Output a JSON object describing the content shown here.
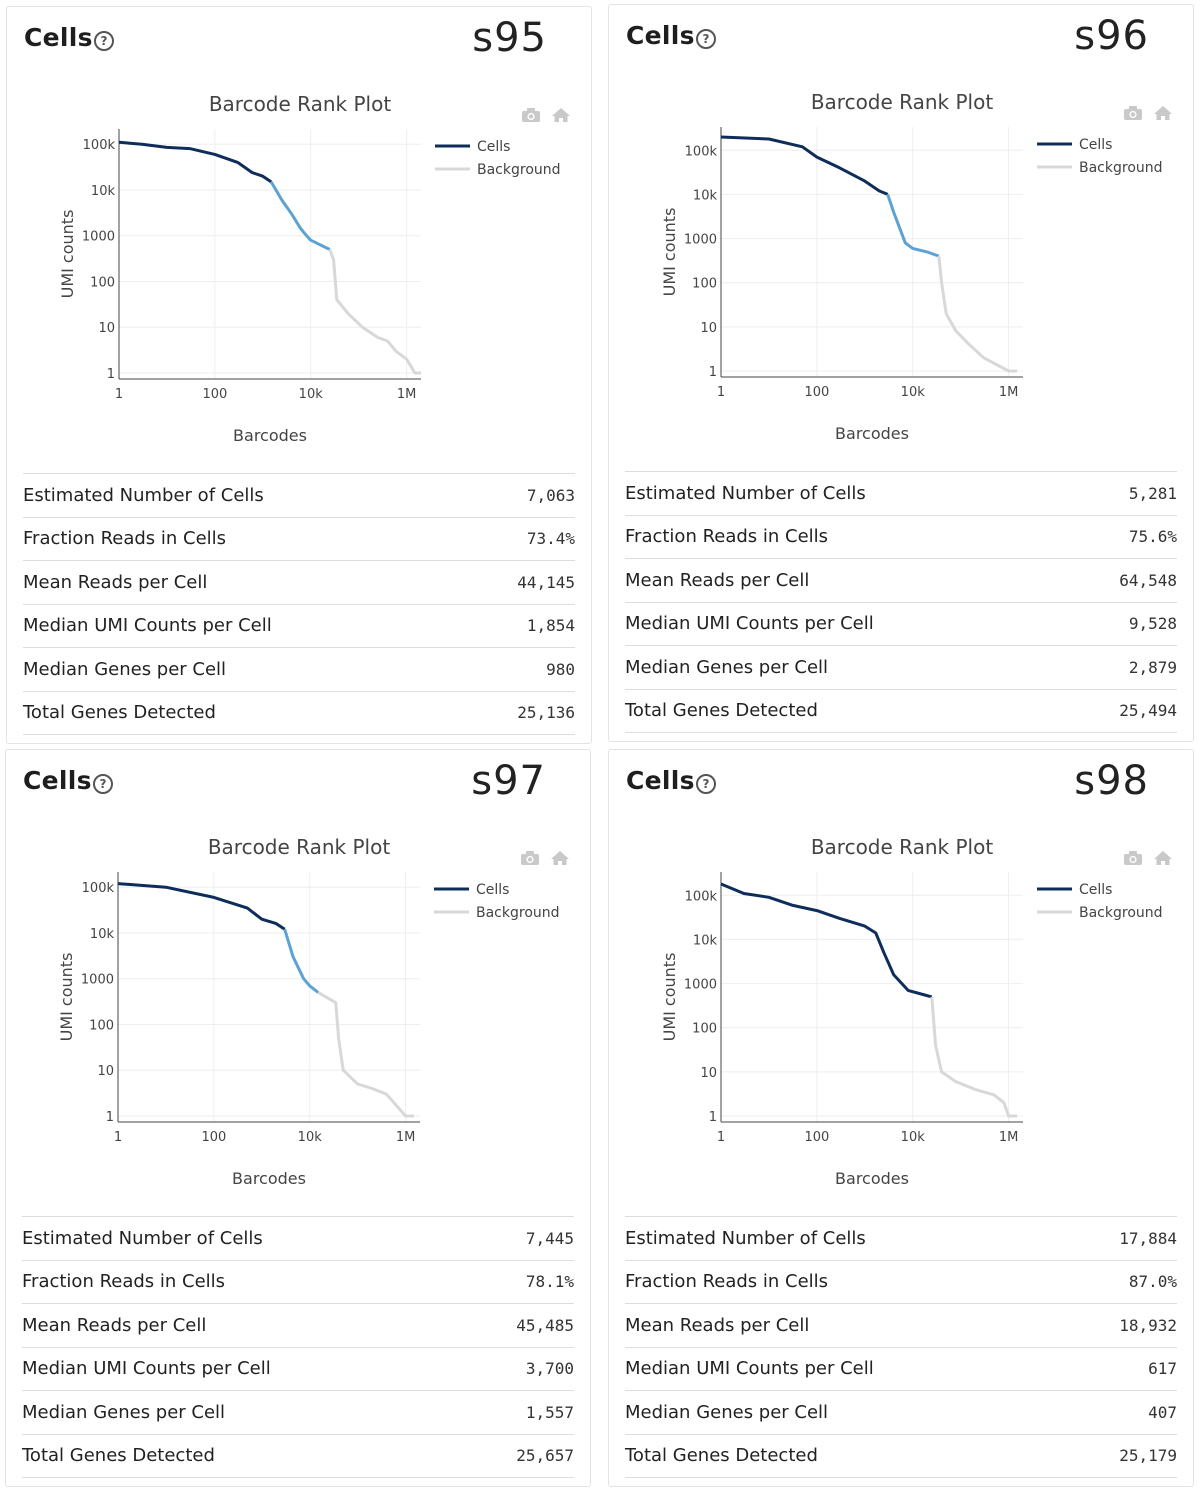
{
  "panels": [
    {
      "title": "Cells",
      "sample": "s95",
      "stats": [
        {
          "label": "Estimated Number of Cells",
          "value": "7,063"
        },
        {
          "label": "Fraction Reads in Cells",
          "value": "73.4%"
        },
        {
          "label": "Mean Reads per Cell",
          "value": "44,145"
        },
        {
          "label": "Median UMI Counts per Cell",
          "value": "1,854"
        },
        {
          "label": "Median Genes per Cell",
          "value": "980"
        },
        {
          "label": "Total Genes Detected",
          "value": "25,136"
        }
      ]
    },
    {
      "title": "Cells",
      "sample": "s96",
      "stats": [
        {
          "label": "Estimated Number of Cells",
          "value": "5,281"
        },
        {
          "label": "Fraction Reads in Cells",
          "value": "75.6%"
        },
        {
          "label": "Mean Reads per Cell",
          "value": "64,548"
        },
        {
          "label": "Median UMI Counts per Cell",
          "value": "9,528"
        },
        {
          "label": "Median Genes per Cell",
          "value": "2,879"
        },
        {
          "label": "Total Genes Detected",
          "value": "25,494"
        }
      ]
    },
    {
      "title": "Cells",
      "sample": "s97",
      "stats": [
        {
          "label": "Estimated Number of Cells",
          "value": "7,445"
        },
        {
          "label": "Fraction Reads in Cells",
          "value": "78.1%"
        },
        {
          "label": "Mean Reads per Cell",
          "value": "45,485"
        },
        {
          "label": "Median UMI Counts per Cell",
          "value": "3,700"
        },
        {
          "label": "Median Genes per Cell",
          "value": "1,557"
        },
        {
          "label": "Total Genes Detected",
          "value": "25,657"
        }
      ]
    },
    {
      "title": "Cells",
      "sample": "s98",
      "stats": [
        {
          "label": "Estimated Number of Cells",
          "value": "17,884"
        },
        {
          "label": "Fraction Reads in Cells",
          "value": "87.0%"
        },
        {
          "label": "Mean Reads per Cell",
          "value": "18,932"
        },
        {
          "label": "Median UMI Counts per Cell",
          "value": "617"
        },
        {
          "label": "Median Genes per Cell",
          "value": "407"
        },
        {
          "label": "Total Genes Detected",
          "value": "25,179"
        }
      ]
    }
  ],
  "colors": {
    "cells": "#0e2d5a",
    "transition": "#5da2d5",
    "background": "#d8d8d8"
  },
  "chart_data": [
    {
      "type": "line",
      "title": "Barcode Rank Plot",
      "xlabel": "Barcodes",
      "ylabel": "UMI counts",
      "x_scale": "log",
      "y_scale": "log",
      "xlim": [
        1,
        2000000
      ],
      "ylim": [
        1,
        130000
      ],
      "x_ticks": [
        "1",
        "100",
        "10k",
        "1M"
      ],
      "y_ticks": [
        "1",
        "10",
        "100",
        "1000",
        "10k",
        "100k"
      ],
      "legend": [
        "Cells",
        "Background"
      ],
      "legend_position": "right",
      "grid": true,
      "series": [
        {
          "name": "Cells",
          "x": [
            1,
            3,
            10,
            30,
            100,
            300,
            600,
            1000,
            1500
          ],
          "y": [
            110000,
            100000,
            85000,
            80000,
            60000,
            40000,
            24000,
            20000,
            15000
          ]
        },
        {
          "name": "Cells",
          "x": [
            1500,
            2500,
            4000,
            6000,
            7063,
            10000,
            15000,
            25000
          ],
          "y": [
            15000,
            6000,
            3000,
            1500,
            1200,
            800,
            650,
            500
          ]
        },
        {
          "name": "Background",
          "x": [
            25000,
            30000,
            35000,
            60000,
            120000,
            250000,
            400000,
            600000,
            1000000,
            1500000,
            2000000
          ],
          "y": [
            500,
            300,
            40,
            20,
            10,
            6,
            5,
            3,
            2,
            1,
            1
          ]
        }
      ]
    },
    {
      "type": "line",
      "title": "Barcode Rank Plot",
      "xlabel": "Barcodes",
      "ylabel": "UMI counts",
      "x_scale": "log",
      "y_scale": "log",
      "xlim": [
        1,
        2000000
      ],
      "ylim": [
        1,
        200000
      ],
      "x_ticks": [
        "1",
        "100",
        "10k",
        "1M"
      ],
      "y_ticks": [
        "1",
        "10",
        "100",
        "1000",
        "10k",
        "100k"
      ],
      "legend": [
        "Cells",
        "Background"
      ],
      "legend_position": "right",
      "grid": true,
      "series": [
        {
          "name": "Cells",
          "x": [
            1,
            10,
            50,
            100,
            300,
            1000,
            2000,
            3000
          ],
          "y": [
            200000,
            180000,
            120000,
            70000,
            40000,
            20000,
            12000,
            10000
          ]
        },
        {
          "name": "Cells",
          "x": [
            3000,
            4000,
            5281,
            7000,
            10000,
            20000,
            35000
          ],
          "y": [
            10000,
            4000,
            1800,
            800,
            600,
            500,
            400
          ]
        },
        {
          "name": "Background",
          "x": [
            35000,
            40000,
            50000,
            80000,
            150000,
            300000,
            1000000,
            1500000
          ],
          "y": [
            400,
            100,
            20,
            8,
            4,
            2,
            1,
            1
          ]
        }
      ]
    },
    {
      "type": "line",
      "title": "Barcode Rank Plot",
      "xlabel": "Barcodes",
      "ylabel": "UMI counts",
      "x_scale": "log",
      "y_scale": "log",
      "xlim": [
        1,
        2000000
      ],
      "ylim": [
        1,
        130000
      ],
      "x_ticks": [
        "1",
        "100",
        "10k",
        "1M"
      ],
      "y_ticks": [
        "1",
        "10",
        "100",
        "1000",
        "10k",
        "100k"
      ],
      "legend": [
        "Cells",
        "Background"
      ],
      "legend_position": "right",
      "grid": true,
      "series": [
        {
          "name": "Cells",
          "x": [
            1,
            10,
            100,
            500,
            1000,
            2000,
            3000
          ],
          "y": [
            120000,
            100000,
            60000,
            35000,
            20000,
            16000,
            12000
          ]
        },
        {
          "name": "Cells",
          "x": [
            3000,
            4500,
            7445,
            10000,
            15000
          ],
          "y": [
            12000,
            3000,
            1000,
            700,
            500
          ]
        },
        {
          "name": "Background",
          "x": [
            15000,
            35000,
            40000,
            50000,
            100000,
            200000,
            400000,
            1000000,
            1500000
          ],
          "y": [
            500,
            300,
            50,
            10,
            5,
            4,
            3,
            1,
            1
          ]
        }
      ]
    },
    {
      "type": "line",
      "title": "Barcode Rank Plot",
      "xlabel": "Barcodes",
      "ylabel": "UMI counts",
      "x_scale": "log",
      "y_scale": "log",
      "xlim": [
        1,
        2000000
      ],
      "ylim": [
        1,
        200000
      ],
      "x_ticks": [
        "1",
        "100",
        "10k",
        "1M"
      ],
      "y_ticks": [
        "1",
        "10",
        "100",
        "1000",
        "10k",
        "100k"
      ],
      "legend": [
        "Cells",
        "Background"
      ],
      "legend_position": "right",
      "grid": true,
      "series": [
        {
          "name": "Cells",
          "x": [
            1,
            3,
            10,
            30,
            100,
            300,
            1000,
            1700,
            2500,
            4000,
            8000,
            17884,
            25000
          ],
          "y": [
            180000,
            110000,
            90000,
            60000,
            45000,
            30000,
            20000,
            14000,
            5000,
            1600,
            700,
            550,
            500
          ]
        },
        {
          "name": "Background",
          "x": [
            25000,
            30000,
            40000,
            80000,
            200000,
            500000,
            800000,
            1000000,
            1500000
          ],
          "y": [
            500,
            40,
            10,
            6,
            4,
            3,
            2,
            1,
            1
          ]
        }
      ]
    }
  ]
}
